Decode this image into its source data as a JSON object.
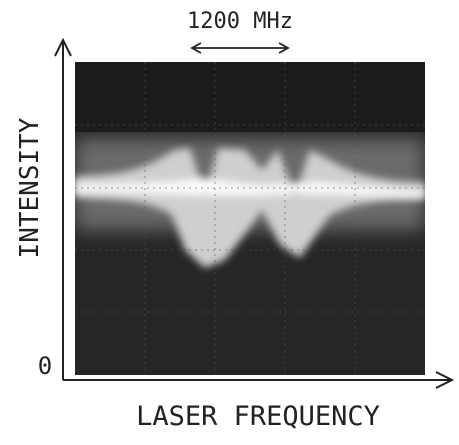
{
  "figure": {
    "scale_label": "1200 MHz",
    "y_axis_label": "INTENSITY",
    "y_origin_label": "0",
    "x_axis_label": "LASER FREQUENCY"
  }
}
